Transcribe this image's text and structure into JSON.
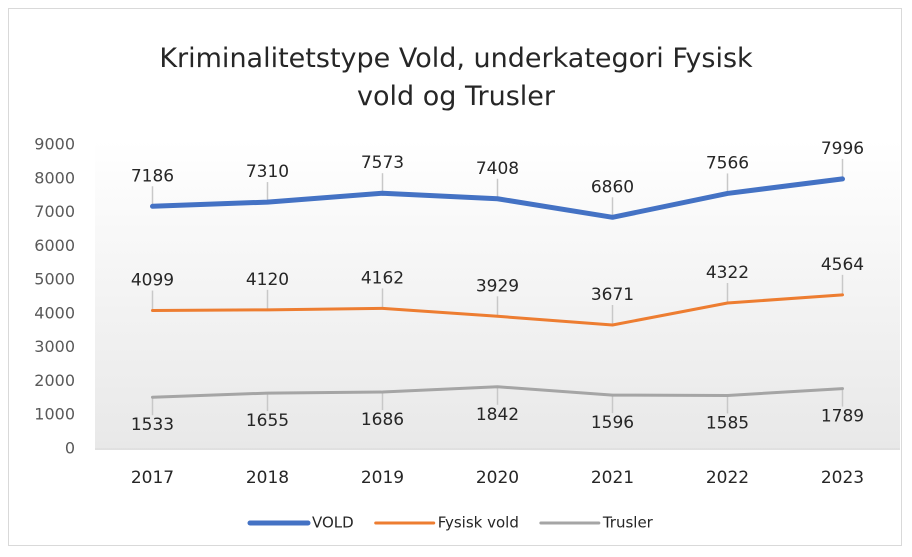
{
  "chart_data": {
    "type": "line",
    "title": "Kriminalitetstype  Vold, underkategori  Fysisk vold og Trusler",
    "categories": [
      "2017",
      "2018",
      "2019",
      "2020",
      "2021",
      "2022",
      "2023"
    ],
    "series": [
      {
        "name": "VOLD",
        "color": "#4472c4",
        "values": [
          7186,
          7310,
          7573,
          7408,
          6860,
          7566,
          7996
        ]
      },
      {
        "name": "Fysisk vold",
        "color": "#ed7d31",
        "values": [
          4099,
          4120,
          4162,
          3929,
          3671,
          4322,
          4564
        ]
      },
      {
        "name": "Trusler",
        "color": "#a5a5a5",
        "values": [
          1533,
          1655,
          1686,
          1842,
          1596,
          1585,
          1789
        ]
      }
    ],
    "ylim": [
      0,
      9000
    ],
    "yticks": [
      0,
      1000,
      2000,
      3000,
      4000,
      5000,
      6000,
      7000,
      8000,
      9000
    ],
    "grid": false,
    "legend": "bottom"
  }
}
